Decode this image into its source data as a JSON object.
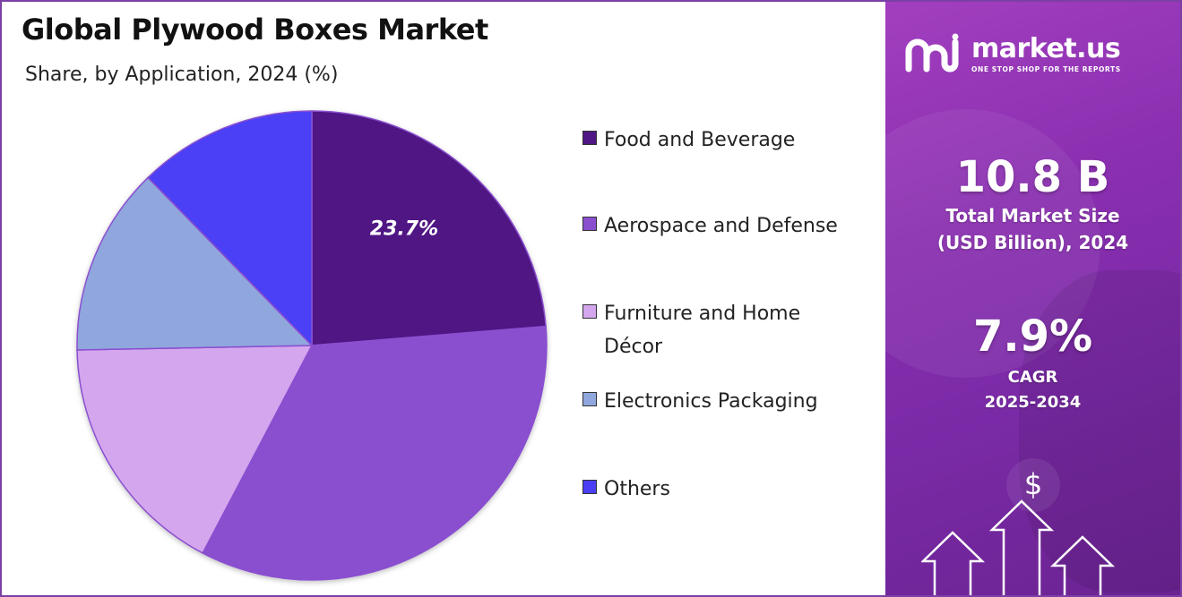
{
  "title": "Global Plywood Boxes Market",
  "subtitle": "Share, by Application, 2024 (%)",
  "chart_data": {
    "type": "pie",
    "title": "Global Plywood Boxes Market",
    "subtitle": "Share, by Application, 2024 (%)",
    "start_angle_deg": 0,
    "direction": "clockwise",
    "slices": [
      {
        "label": "Food and Beverage",
        "value": 23.7,
        "color": "#4f1684",
        "data_label": "23.7%"
      },
      {
        "label": "Aerospace and Defense",
        "value": 34.0,
        "color": "#8a4fcf"
      },
      {
        "label": "Furniture and Home Décor",
        "value": 17.0,
        "color": "#d4a6ee"
      },
      {
        "label": "Electronics Packaging",
        "value": 13.0,
        "color": "#8fa7dd"
      },
      {
        "label": "Others",
        "value": 12.3,
        "color": "#4b3ff5"
      }
    ],
    "legend_position": "right"
  },
  "legend": {
    "items": [
      {
        "label": "Food and Beverage",
        "color": "#4f1684"
      },
      {
        "label": "Aerospace and Defense",
        "color": "#8a4fcf"
      },
      {
        "label": "Furniture and Home Décor",
        "color": "#d4a6ee"
      },
      {
        "label": "Electronics Packaging",
        "color": "#8fa7dd"
      },
      {
        "label": "Others",
        "color": "#4b3ff5"
      }
    ]
  },
  "side_panel": {
    "brand_name": "market.us",
    "brand_tagline": "ONE STOP SHOP FOR THE REPORTS",
    "market_size_value": "10.8 B",
    "market_size_label_1": "Total Market Size",
    "market_size_label_2": "(USD Billion), 2024",
    "cagr_value": "7.9%",
    "cagr_label_1": "CAGR",
    "cagr_label_2": "2025-2034",
    "graphic_symbol": "$",
    "icons": [
      "market-us-logo-icon",
      "dollar-icon",
      "up-arrow-icon"
    ],
    "background_color": "#8a2fb0"
  }
}
